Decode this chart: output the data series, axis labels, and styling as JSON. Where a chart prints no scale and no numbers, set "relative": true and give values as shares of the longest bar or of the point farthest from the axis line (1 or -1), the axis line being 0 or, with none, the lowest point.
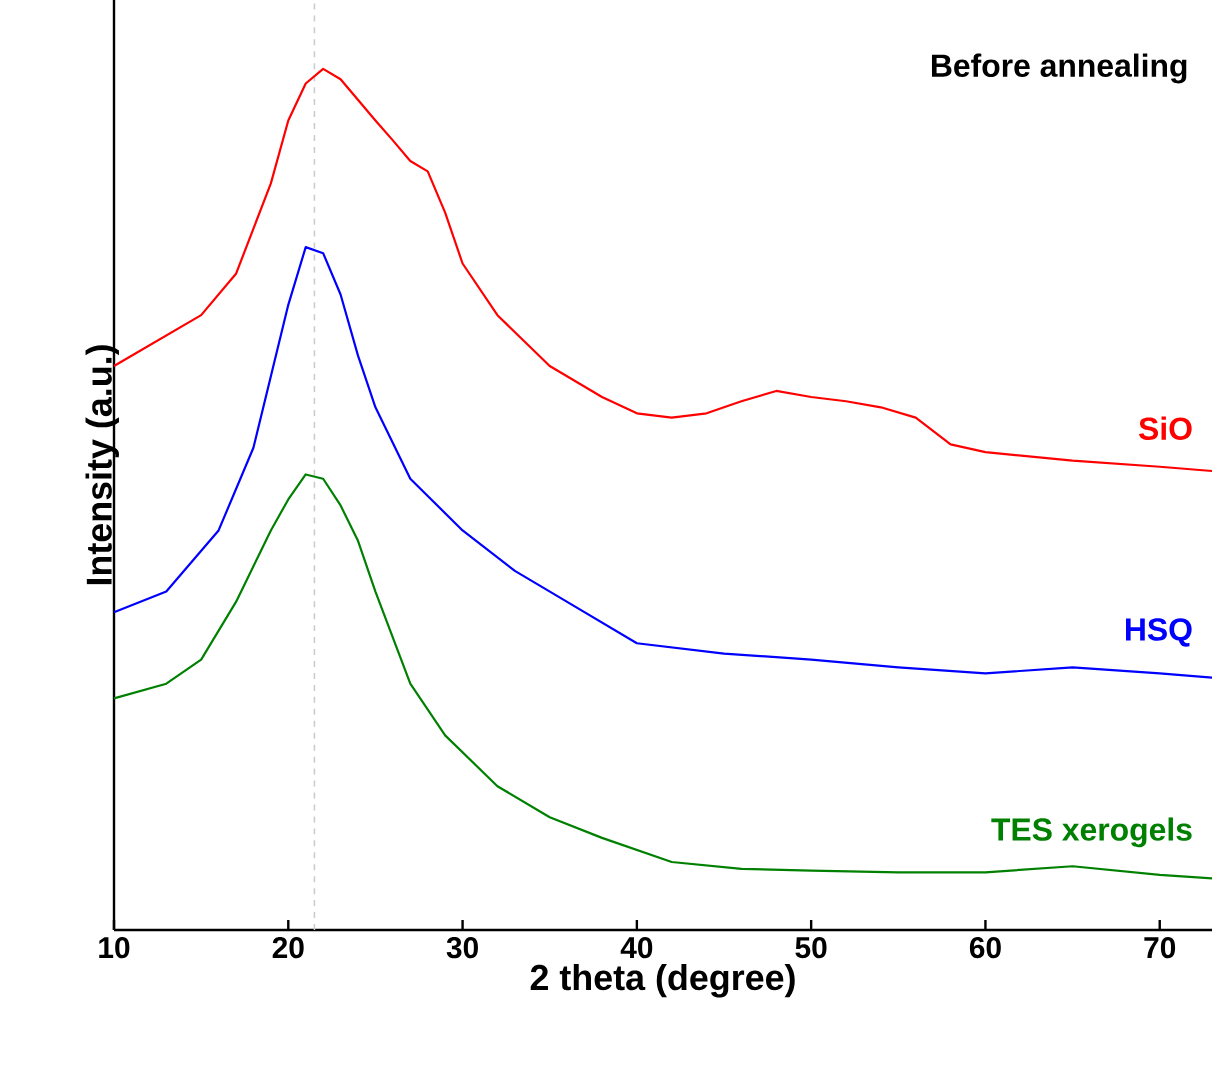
{
  "chart_data": {
    "type": "line",
    "xlabel": "2 theta (degree)",
    "ylabel": "Intensity (a.u.)",
    "relative": true,
    "marker": "none",
    "line_style": "solid",
    "xlim": [
      10,
      73
    ],
    "xticks": [
      10,
      20,
      30,
      40,
      50,
      60,
      70
    ],
    "ref_lines": [
      {
        "axis": "x",
        "value": 21.5,
        "color": "#cccccc",
        "line_style": "dashed"
      }
    ],
    "annotations": [
      "Before annealing"
    ],
    "series": [
      {
        "name": "SiO",
        "color": "#ff0000",
        "x": [
          10,
          15,
          17,
          19,
          20,
          21,
          22,
          23,
          25,
          26,
          27,
          28,
          29,
          30,
          32,
          35,
          38,
          40,
          42,
          44,
          46,
          48,
          50,
          52,
          54,
          56,
          58,
          60,
          65,
          70,
          73
        ],
        "values": [
          0.655,
          0.714,
          0.762,
          0.867,
          0.94,
          0.983,
          1.0,
          0.988,
          0.94,
          0.917,
          0.893,
          0.881,
          0.833,
          0.774,
          0.714,
          0.655,
          0.619,
          0.6,
          0.595,
          0.6,
          0.614,
          0.626,
          0.619,
          0.614,
          0.607,
          0.595,
          0.564,
          0.555,
          0.545,
          0.538,
          0.533
        ]
      },
      {
        "name": "HSQ",
        "color": "#0000ff",
        "x": [
          10,
          13,
          16,
          18,
          19,
          20,
          21,
          22,
          23,
          24,
          25,
          27,
          30,
          33,
          36,
          40,
          45,
          50,
          55,
          60,
          65,
          70,
          73
        ],
        "values": [
          0.369,
          0.393,
          0.464,
          0.56,
          0.643,
          0.726,
          0.793,
          0.786,
          0.738,
          0.667,
          0.607,
          0.524,
          0.464,
          0.417,
          0.381,
          0.333,
          0.321,
          0.314,
          0.305,
          0.298,
          0.305,
          0.298,
          0.293
        ]
      },
      {
        "name": "TES xerogels",
        "color": "#008000",
        "x": [
          10,
          13,
          15,
          17,
          19,
          20,
          21,
          22,
          23,
          24,
          25,
          27,
          29,
          32,
          35,
          38,
          42,
          46,
          50,
          55,
          60,
          65,
          70,
          73
        ],
        "values": [
          0.269,
          0.286,
          0.314,
          0.381,
          0.464,
          0.5,
          0.529,
          0.524,
          0.493,
          0.452,
          0.393,
          0.286,
          0.226,
          0.167,
          0.131,
          0.107,
          0.079,
          0.071,
          0.069,
          0.067,
          0.067,
          0.074,
          0.064,
          0.06
        ]
      }
    ]
  }
}
